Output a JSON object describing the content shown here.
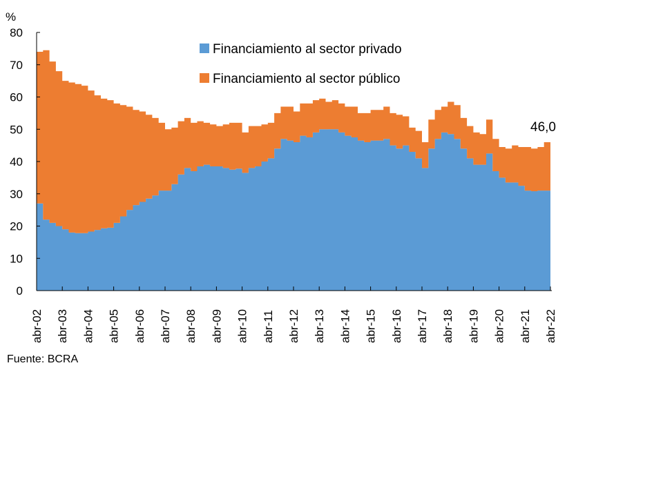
{
  "chart_data": {
    "type": "area",
    "stacked": true,
    "ylabel": "%",
    "ylim": [
      0,
      80
    ],
    "yticks": [
      0,
      10,
      20,
      30,
      40,
      50,
      60,
      70,
      80
    ],
    "grid": false,
    "legend_position": "top-center",
    "xtick_labels": [
      "abr-02",
      "abr-03",
      "abr-04",
      "abr-05",
      "abr-06",
      "abr-07",
      "abr-08",
      "abr-09",
      "abr-10",
      "abr-11",
      "abr-12",
      "abr-13",
      "abr-14",
      "abr-15",
      "abr-16",
      "abr-17",
      "abr-18",
      "abr-19",
      "abr-20",
      "abr-21",
      "abr-22"
    ],
    "x": [
      "abr-02",
      "jul-02",
      "oct-02",
      "ene-03",
      "abr-03",
      "jul-03",
      "oct-03",
      "ene-04",
      "abr-04",
      "jul-04",
      "oct-04",
      "ene-05",
      "abr-05",
      "jul-05",
      "oct-05",
      "ene-06",
      "abr-06",
      "jul-06",
      "oct-06",
      "ene-07",
      "abr-07",
      "jul-07",
      "oct-07",
      "ene-08",
      "abr-08",
      "jul-08",
      "oct-08",
      "ene-09",
      "abr-09",
      "jul-09",
      "oct-09",
      "ene-10",
      "abr-10",
      "jul-10",
      "oct-10",
      "ene-11",
      "abr-11",
      "jul-11",
      "oct-11",
      "ene-12",
      "abr-12",
      "jul-12",
      "oct-12",
      "ene-13",
      "abr-13",
      "jul-13",
      "oct-13",
      "ene-14",
      "abr-14",
      "jul-14",
      "oct-14",
      "ene-15",
      "abr-15",
      "jul-15",
      "oct-15",
      "ene-16",
      "abr-16",
      "jul-16",
      "oct-16",
      "ene-17",
      "abr-17",
      "jul-17",
      "oct-17",
      "ene-18",
      "abr-18",
      "jul-18",
      "oct-18",
      "ene-19",
      "abr-19",
      "jul-19",
      "oct-19",
      "ene-20",
      "abr-20",
      "jul-20",
      "oct-20",
      "ene-21",
      "abr-21",
      "jul-21",
      "oct-21",
      "ene-22",
      "abr-22"
    ],
    "series": [
      {
        "name": "Financiamiento al sector privado",
        "color": "#5b9bd5",
        "values": [
          27,
          22,
          21,
          20,
          19,
          18,
          17.8,
          17.8,
          18.3,
          18.8,
          19.3,
          19.5,
          21,
          23,
          25,
          26.5,
          27.5,
          28.5,
          29.5,
          31,
          31,
          33,
          36,
          38,
          37,
          38.5,
          39,
          38.5,
          38.5,
          38,
          37.5,
          37.8,
          36.5,
          38,
          38.5,
          40,
          41,
          44,
          47,
          46.5,
          46,
          48,
          47.5,
          49,
          50,
          50,
          50,
          49,
          48,
          47.5,
          46.5,
          46,
          46.5,
          46.5,
          47,
          45,
          44,
          45,
          43,
          41,
          38,
          44,
          47,
          49,
          48.5,
          47,
          44,
          41,
          39,
          39,
          42.5,
          37,
          35,
          33.5,
          33.5,
          32.5,
          31,
          30.8,
          31,
          31,
          30.8
        ]
      },
      {
        "name": "Financiamiento al sector público",
        "color": "#ed7d31",
        "values": [
          47,
          52.5,
          50,
          48,
          46,
          46.5,
          46.2,
          45.7,
          43.7,
          41.7,
          40.2,
          39.5,
          37,
          34.5,
          32,
          29.5,
          28,
          26,
          24,
          21,
          19,
          17.5,
          16.5,
          15.5,
          15,
          14,
          13,
          13,
          12.5,
          13.5,
          14.5,
          14.2,
          12.5,
          13,
          12.5,
          11.5,
          11,
          11,
          10,
          10.5,
          9.5,
          10,
          10.5,
          10,
          9.5,
          8.5,
          9,
          9,
          9,
          9.5,
          8.5,
          9,
          9.5,
          9.5,
          10,
          10,
          10.5,
          9,
          7.5,
          8.5,
          8,
          9,
          9,
          8,
          10,
          10.5,
          9.5,
          10,
          10,
          9.5,
          10.5,
          10,
          9.5,
          10.5,
          11.5,
          12,
          13.5,
          13.2,
          13.5,
          15,
          15.2
        ]
      }
    ],
    "annotations": [
      {
        "text": "46,0",
        "x": "abr-22"
      }
    ]
  },
  "source": "Fuente: BCRA"
}
